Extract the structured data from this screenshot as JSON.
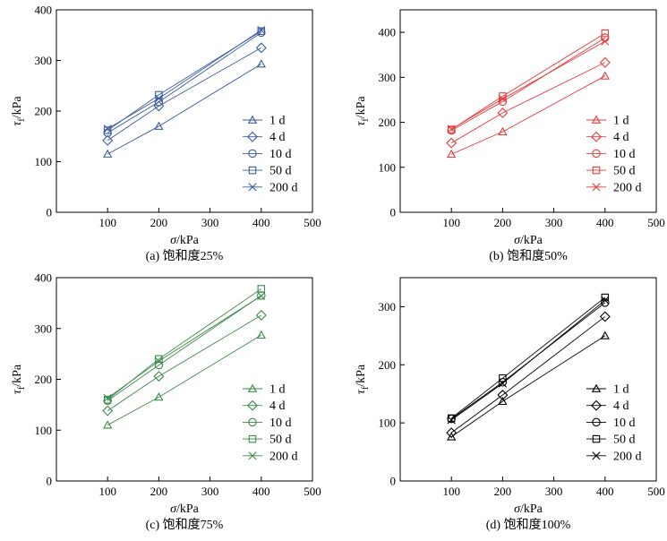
{
  "chart_data": [
    {
      "type": "line",
      "caption": "(a) 饱和度25%",
      "xlabel_sym": "σ",
      "xlabel_unit": "/kPa",
      "ylabel_sym": "τ",
      "ylabel_sub": "f",
      "ylabel_unit": "/kPa",
      "xlim": [
        0,
        500
      ],
      "ylim": [
        0,
        400
      ],
      "xticks": [
        100,
        200,
        300,
        400,
        500
      ],
      "yticks": [
        0,
        100,
        200,
        300,
        400
      ],
      "color": "#3a5ba0",
      "legend_position": "bottom-right",
      "x": [
        100,
        200,
        400
      ],
      "series": [
        {
          "name": "1 d",
          "marker": "triangle",
          "values": [
            115,
            170,
            293
          ]
        },
        {
          "name": "4 d",
          "marker": "diamond",
          "values": [
            142,
            210,
            325
          ]
        },
        {
          "name": "10 d",
          "marker": "circle",
          "values": [
            157,
            218,
            355
          ]
        },
        {
          "name": "50 d",
          "marker": "square",
          "values": [
            162,
            232,
            358
          ]
        },
        {
          "name": "200 d",
          "marker": "x",
          "values": [
            165,
            225,
            360
          ]
        }
      ]
    },
    {
      "type": "line",
      "caption": "(b) 饱和度50%",
      "xlabel_sym": "σ",
      "xlabel_unit": "/kPa",
      "ylabel_sym": "τ",
      "ylabel_sub": "f",
      "ylabel_unit": "/kPa",
      "xlim": [
        0,
        500
      ],
      "ylim": [
        0,
        450
      ],
      "xticks": [
        100,
        200,
        300,
        400,
        500
      ],
      "yticks": [
        0,
        100,
        200,
        300,
        400
      ],
      "color": "#e83b3b",
      "legend_position": "bottom-right",
      "x": [
        100,
        200,
        400
      ],
      "series": [
        {
          "name": "1 d",
          "marker": "triangle",
          "values": [
            129,
            179,
            303
          ]
        },
        {
          "name": "4 d",
          "marker": "diamond",
          "values": [
            154,
            221,
            333
          ]
        },
        {
          "name": "10 d",
          "marker": "circle",
          "values": [
            182,
            246,
            388
          ]
        },
        {
          "name": "50 d",
          "marker": "square",
          "values": [
            184,
            258,
            398
          ]
        },
        {
          "name": "200 d",
          "marker": "x",
          "values": [
            185,
            252,
            380
          ]
        }
      ]
    },
    {
      "type": "line",
      "caption": "(c) 饱和度75%",
      "xlabel_sym": "σ",
      "xlabel_unit": "/kPa",
      "ylabel_sym": "τ",
      "ylabel_sub": "f",
      "ylabel_unit": "/kPa",
      "xlim": [
        0,
        500
      ],
      "ylim": [
        0,
        400
      ],
      "xticks": [
        100,
        200,
        300,
        400,
        500
      ],
      "yticks": [
        0,
        100,
        200,
        300,
        400
      ],
      "color": "#3a8a4a",
      "legend_position": "bottom-right",
      "x": [
        100,
        200,
        400
      ],
      "series": [
        {
          "name": "1 d",
          "marker": "triangle",
          "values": [
            110,
            165,
            287
          ]
        },
        {
          "name": "4 d",
          "marker": "diamond",
          "values": [
            138,
            206,
            326
          ]
        },
        {
          "name": "10 d",
          "marker": "circle",
          "values": [
            158,
            228,
            365
          ]
        },
        {
          "name": "50 d",
          "marker": "square",
          "values": [
            160,
            240,
            378
          ]
        },
        {
          "name": "200 d",
          "marker": "x",
          "values": [
            163,
            236,
            364
          ]
        }
      ]
    },
    {
      "type": "line",
      "caption": "(d) 饱和度100%",
      "xlabel_sym": "σ",
      "xlabel_unit": "/kPa",
      "ylabel_sym": "τ",
      "ylabel_sub": "f",
      "ylabel_unit": "/kPa",
      "xlim": [
        0,
        500
      ],
      "ylim": [
        0,
        350
      ],
      "xticks": [
        100,
        200,
        300,
        400,
        500
      ],
      "yticks": [
        0,
        100,
        200,
        300
      ],
      "color": "#000000",
      "legend_position": "bottom-right",
      "x": [
        100,
        200,
        400
      ],
      "series": [
        {
          "name": "1 d",
          "marker": "triangle",
          "values": [
            76,
            137,
            250
          ]
        },
        {
          "name": "4 d",
          "marker": "diamond",
          "values": [
            83,
            148,
            283
          ]
        },
        {
          "name": "10 d",
          "marker": "circle",
          "values": [
            107,
            170,
            307
          ]
        },
        {
          "name": "50 d",
          "marker": "square",
          "values": [
            108,
            177,
            316
          ]
        },
        {
          "name": "200 d",
          "marker": "x",
          "values": [
            105,
            168,
            311
          ]
        }
      ]
    }
  ]
}
